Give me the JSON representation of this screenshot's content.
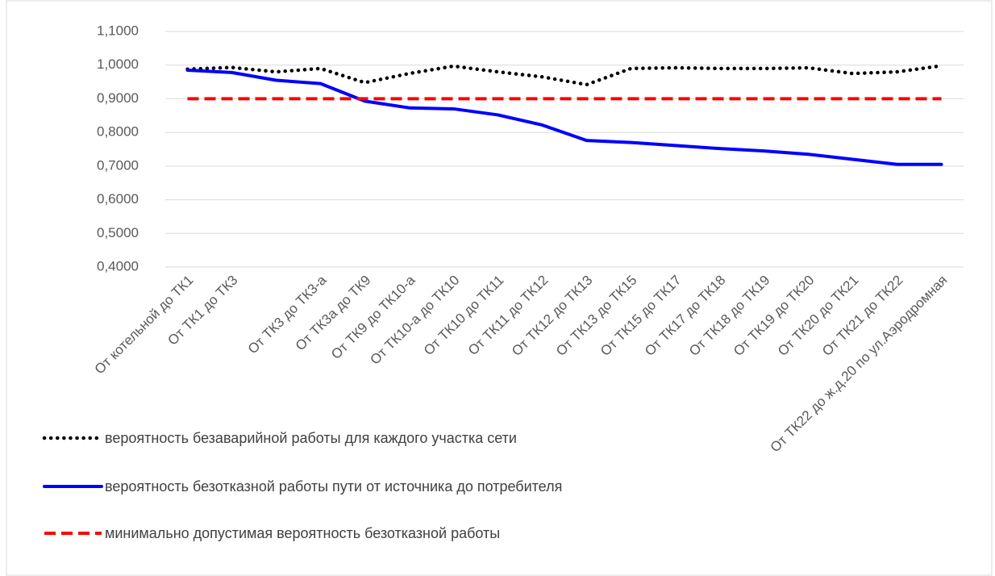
{
  "chart_data": {
    "type": "line",
    "categories": [
      "От котельной до ТК1",
      "От ТК1 до ТК3",
      null,
      "От ТК3 до ТК3-а",
      "От ТК3а до ТК9",
      "От ТК9 до ТК10-а",
      "От ТК10-а до ТК10",
      "От ТК10 до ТК11",
      "От ТК11 до ТК12",
      "От ТК12 до ТК13",
      "От ТК13 до ТК15",
      "От ТК15 до ТК17",
      "От ТК17 до ТК18",
      "От ТК18 до ТК19",
      "От ТК19 до ТК20",
      "От ТК20 до ТК21",
      "От ТК21 до ТК22",
      "От ТК22 до ж.д.20 по ул.Аэродромная"
    ],
    "series": [
      {
        "name": "вероятность безаварийной работы для каждого участка сети",
        "color": "#000000",
        "style": "dotted",
        "values": [
          0.988,
          0.993,
          0.98,
          0.99,
          0.948,
          0.975,
          0.997,
          0.98,
          0.965,
          0.942,
          0.99,
          0.992,
          0.99,
          0.99,
          0.992,
          0.975,
          0.98,
          0.998
        ]
      },
      {
        "name": "вероятность безотказной работы пути от источника до потребителя",
        "color": "#0000ff",
        "style": "solid",
        "values": [
          0.985,
          0.978,
          0.955,
          0.945,
          0.893,
          0.873,
          0.87,
          0.852,
          0.822,
          0.776,
          0.77,
          0.761,
          0.752,
          0.745,
          0.735,
          0.72,
          0.705,
          0.705
        ]
      },
      {
        "name": "минимально допустимая вероятность безотказной работы",
        "color": "#ff0000",
        "style": "dashed",
        "values": [
          0.9,
          0.9,
          0.9,
          0.9,
          0.9,
          0.9,
          0.9,
          0.9,
          0.9,
          0.9,
          0.9,
          0.9,
          0.9,
          0.9,
          0.9,
          0.9,
          0.9,
          0.9
        ]
      }
    ],
    "ylim": [
      0.4,
      1.1
    ],
    "yticks": [
      {
        "value": 0.4,
        "label": "0,4000"
      },
      {
        "value": 0.5,
        "label": "0,5000"
      },
      {
        "value": 0.6,
        "label": "0,6000"
      },
      {
        "value": 0.7,
        "label": "0,7000"
      },
      {
        "value": 0.8,
        "label": "0,8000"
      },
      {
        "value": 0.9,
        "label": "0,9000"
      },
      {
        "value": 1.0,
        "label": "1,0000"
      },
      {
        "value": 1.1,
        "label": "1,1000"
      }
    ],
    "grid": true,
    "legend": "bottom-left"
  }
}
